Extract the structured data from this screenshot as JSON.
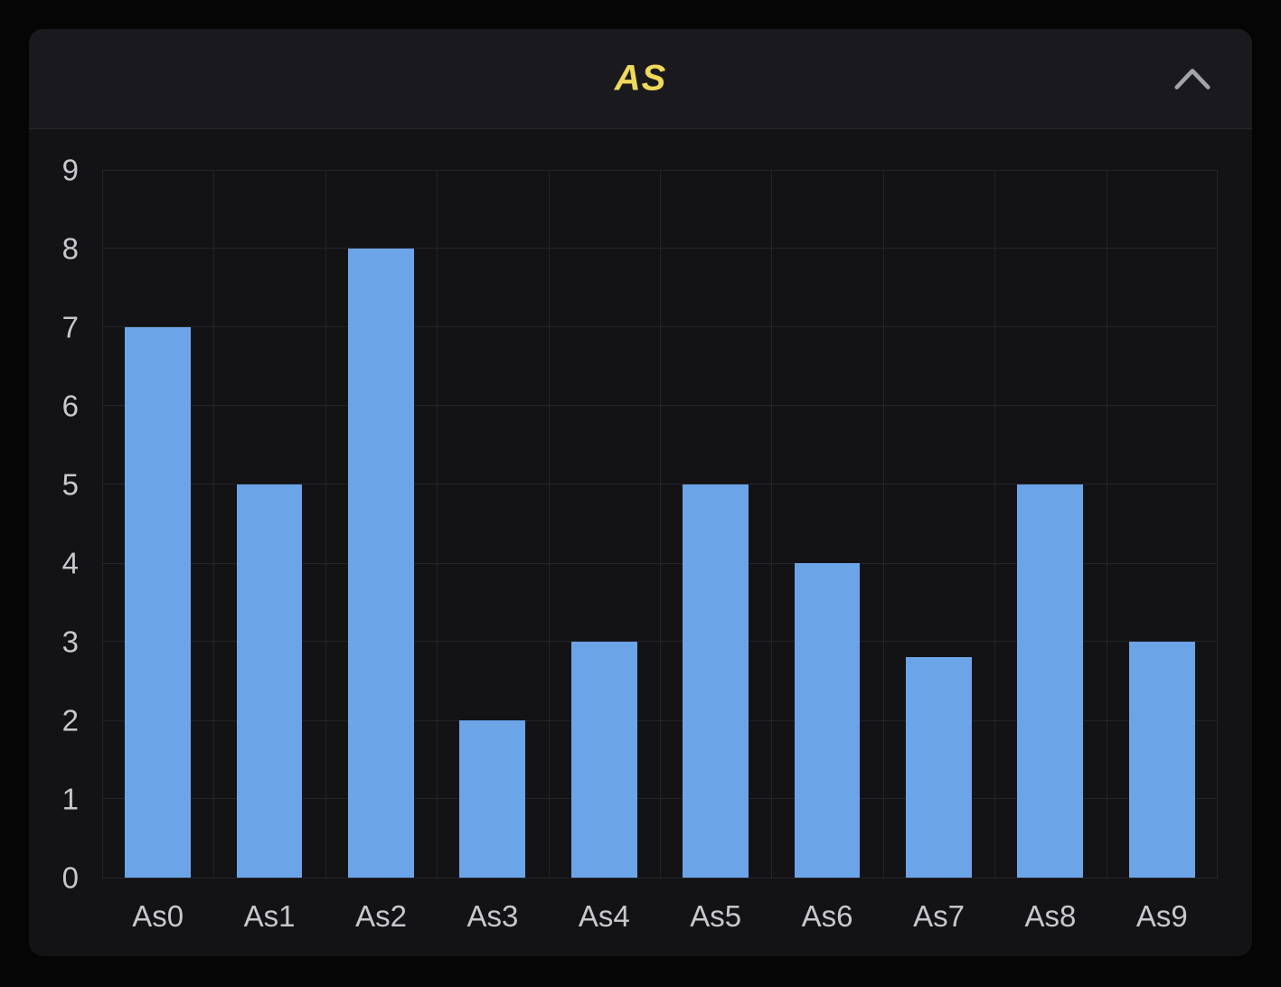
{
  "panel": {
    "title": "AS",
    "collapse_icon": "chevron-up",
    "colors": {
      "page_bg": "#050506",
      "card_bg": "#131316",
      "header_bg": "#1A1A1E",
      "divider": "#29292D",
      "title_color": "#F0D95A",
      "chevron_color": "#A3A4AB",
      "tick_color": "#C7C8CE",
      "grid_color": "#242429",
      "bar_color": "#6CA4E8"
    }
  },
  "chart_data": {
    "type": "bar",
    "title": "AS",
    "categories": [
      "As0",
      "As1",
      "As2",
      "As3",
      "As4",
      "As5",
      "As6",
      "As7",
      "As8",
      "As9"
    ],
    "values": [
      7,
      5,
      8,
      2,
      3,
      5,
      4,
      2.8,
      5,
      3
    ],
    "xlabel": "",
    "ylabel": "",
    "ylim": [
      0,
      9
    ],
    "yticks": [
      0,
      1,
      2,
      3,
      4,
      5,
      6,
      7,
      8,
      9
    ],
    "grid": true,
    "legend": "none",
    "bar_color": "#6CA4E8",
    "bar_width_fraction": 0.59
  }
}
